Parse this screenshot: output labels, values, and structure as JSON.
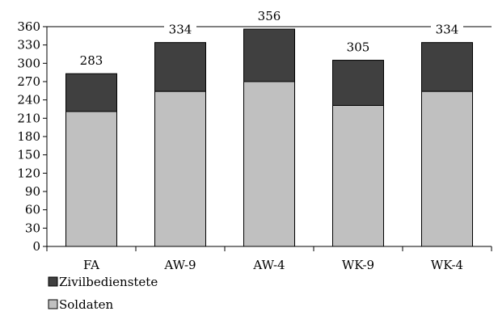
{
  "chart_data": {
    "type": "bar",
    "stacked": true,
    "categories": [
      "FA",
      "AW-9",
      "AW-4",
      "WK-9",
      "WK-4"
    ],
    "series": [
      {
        "name": "Soldaten",
        "values": [
          221,
          254,
          270,
          231,
          254
        ],
        "color": "#c0c0c0"
      },
      {
        "name": "Zivilbedienstete",
        "values": [
          62,
          80,
          86,
          74,
          80
        ],
        "color": "#404040"
      }
    ],
    "totals": [
      "283",
      "334",
      "356",
      "305",
      "334"
    ],
    "ylim": [
      0,
      360
    ],
    "yticks": [
      "0",
      "30",
      "60",
      "90",
      "120",
      "150",
      "180",
      "210",
      "240",
      "270",
      "300",
      "330",
      "360"
    ],
    "grid": false,
    "legend_position": "bottom-left",
    "legend": [
      "Zivilbedienstete",
      "Soldaten"
    ]
  }
}
